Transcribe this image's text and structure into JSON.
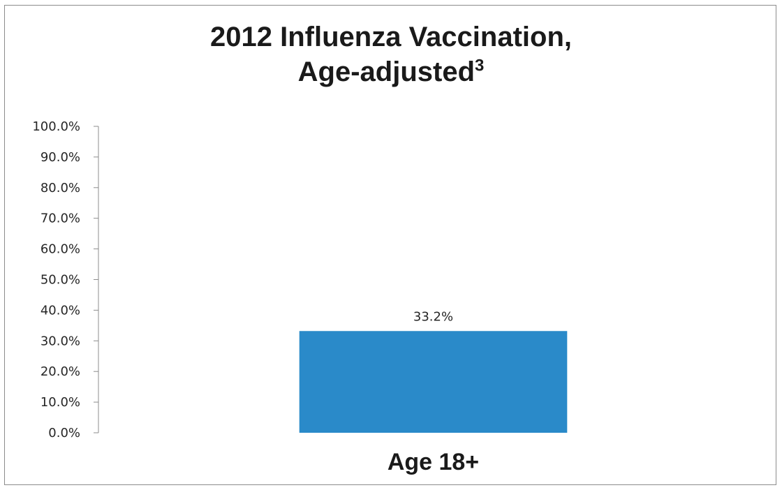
{
  "chart_data": {
    "type": "bar",
    "title": "2012 Influenza Vaccination,",
    "title_line2": "Age-adjusted",
    "title_superscript": "3",
    "categories": [
      "Age 18+"
    ],
    "values": [
      33.2
    ],
    "data_labels": [
      "33.2%"
    ],
    "ylim": [
      0,
      100
    ],
    "yticks": [
      "0.0%",
      "10.0%",
      "20.0%",
      "30.0%",
      "40.0%",
      "50.0%",
      "60.0%",
      "70.0%",
      "80.0%",
      "90.0%",
      "100.0%"
    ],
    "xlabel": "",
    "ylabel": "",
    "grid": false,
    "legend": "none",
    "bar_color": "#2a8ac9"
  }
}
